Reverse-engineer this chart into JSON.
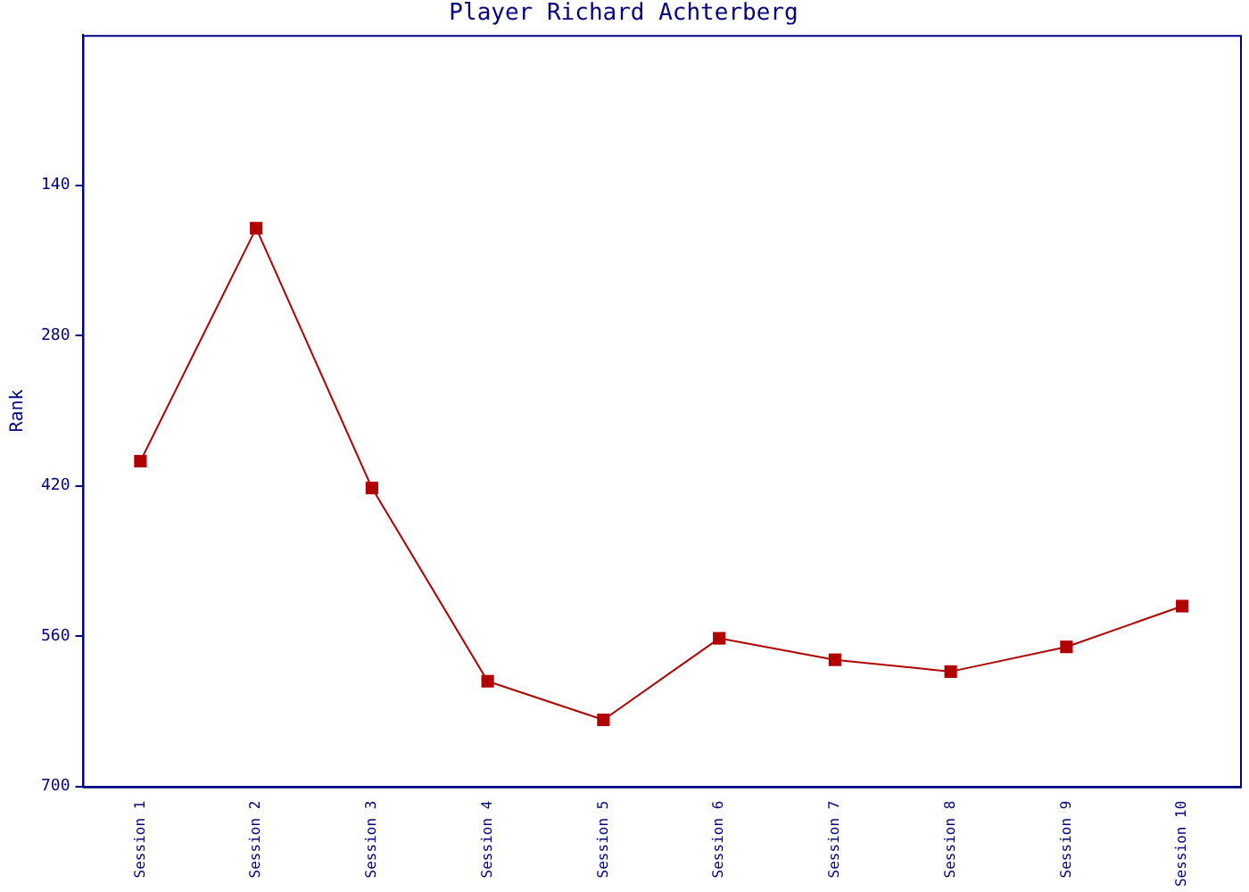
{
  "chart_data": {
    "type": "line",
    "title": "Player Richard Achterberg",
    "ylabel": "Rank",
    "categories": [
      "Session 1",
      "Session 2",
      "Session 3",
      "Session 4",
      "Session 5",
      "Session 6",
      "Session 7",
      "Session 8",
      "Session 9",
      "Session 10"
    ],
    "series": [
      {
        "color": "#b00000",
        "values": [
          397,
          180,
          422,
          602,
          638,
          562,
          582,
          593,
          570,
          532
        ]
      }
    ],
    "ylim": [
      700,
      0
    ],
    "yticks": [
      140,
      280,
      420,
      560,
      700
    ],
    "grid": false,
    "legend": false,
    "marker": "square",
    "line_style": "solid"
  }
}
